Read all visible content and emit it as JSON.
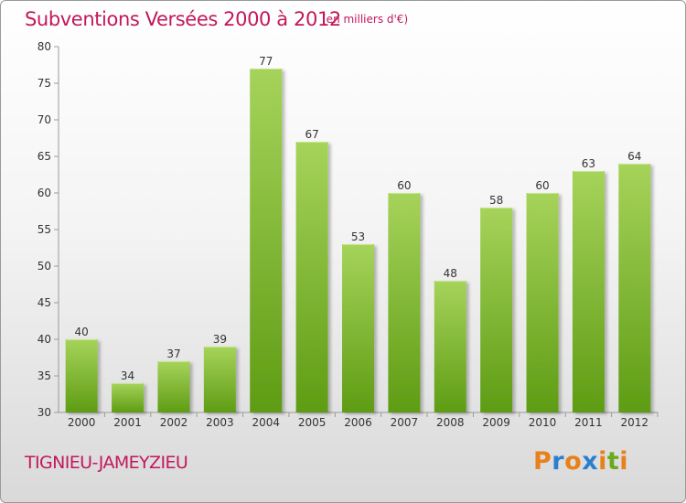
{
  "header": {
    "title": "Subventions Versées 2000 à 2012",
    "subtitle": "(en milliers d'€)"
  },
  "footer": {
    "commune": "TIGNIEU-JAMEYZIEU",
    "logo": "Proxiti"
  },
  "colors": {
    "title": "#c2185b",
    "bar_light": "#a6d35a",
    "bar_dark": "#5e9c14",
    "logo_letters": [
      "#e8811b",
      "#2b7fd0",
      "#e8811b",
      "#2b7fd0",
      "#e8811b",
      "#6aaa1e",
      "#e8811b"
    ]
  },
  "chart_data": {
    "type": "bar",
    "categories": [
      "2000",
      "2001",
      "2002",
      "2003",
      "2004",
      "2005",
      "2006",
      "2007",
      "2008",
      "2009",
      "2010",
      "2011",
      "2012"
    ],
    "values": [
      40,
      34,
      37,
      39,
      77,
      67,
      53,
      60,
      48,
      58,
      60,
      63,
      64
    ],
    "y_ticks": [
      30,
      35,
      40,
      45,
      50,
      55,
      60,
      65,
      70,
      75,
      80
    ],
    "ylim": [
      30,
      80
    ],
    "grid": false,
    "legend": "none"
  }
}
